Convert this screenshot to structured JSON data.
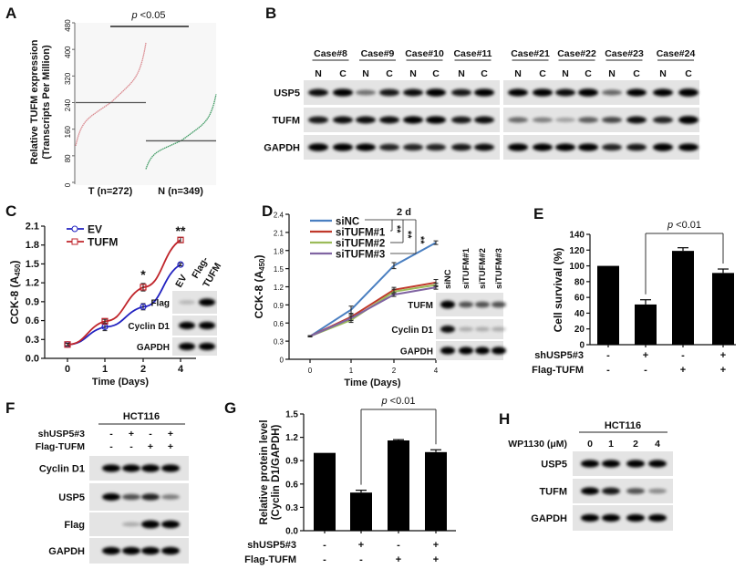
{
  "panel_labels": {
    "A": "A",
    "B": "B",
    "C": "C",
    "D": "D",
    "E": "E",
    "F": "F",
    "G": "G",
    "H": "H"
  },
  "chart_data": [
    {
      "id": "A",
      "type": "scatter",
      "ylabel_line1": "Relative TUFM expression",
      "ylabel_line2": "(Transcripts Per Million)",
      "ylim": [
        0,
        480
      ],
      "yticks": [
        "0",
        "80",
        "160",
        "240",
        "320",
        "400",
        "480"
      ],
      "groups": [
        {
          "label": "T (n=272)",
          "min": 110,
          "max": 420,
          "median": 240,
          "color": "#d9868c"
        },
        {
          "label": "N (n=349)",
          "min": 40,
          "max": 265,
          "median": 125,
          "color": "#3f9a63"
        }
      ],
      "p_label": "p",
      "p_value": "<0.05",
      "grid": false
    },
    {
      "id": "C",
      "type": "line",
      "categories": [
        "0",
        "1",
        "2",
        "4"
      ],
      "xlabel": "Time (Days)",
      "ylabel": "CCK-8 (A",
      "ylabel_sub": "450",
      "ylabel_end": ")",
      "ylim": [
        0,
        2.1
      ],
      "yticks": [
        "0.0",
        "0.3",
        "0.6",
        "0.9",
        "1.2",
        "1.5",
        "1.8",
        "2.1"
      ],
      "legend": "top-left",
      "series": [
        {
          "name": "EV",
          "values": [
            0.22,
            0.5,
            0.82,
            1.49
          ],
          "errors": [
            0.02,
            0.06,
            0.05,
            0.02
          ],
          "color": "#2222c0",
          "marker": "circle"
        },
        {
          "name": "TUFM",
          "values": [
            0.22,
            0.59,
            1.13,
            1.88
          ],
          "errors": [
            0.02,
            0.03,
            0.06,
            0.04
          ],
          "color": "#c0262c",
          "marker": "square"
        }
      ],
      "annotations": [
        {
          "text": "*",
          "category": "2"
        },
        {
          "text": "**",
          "category": "4"
        }
      ]
    },
    {
      "id": "D",
      "type": "line",
      "categories": [
        "0",
        "1",
        "2",
        "4"
      ],
      "xlabel": "Time (Days)",
      "ylabel": "CCK-8 (A",
      "ylabel_sub": "450",
      "ylabel_end": ")",
      "ylim": [
        0,
        2.4
      ],
      "yticks": [
        "0",
        "0.3",
        "0.6",
        "0.9",
        "1.2",
        "1.5",
        "1.8",
        "2.1",
        "2.4"
      ],
      "legend": "top-left",
      "series": [
        {
          "name": "siNC",
          "values": [
            0.38,
            0.82,
            1.55,
            1.93
          ],
          "errors": [
            0.01,
            0.06,
            0.05,
            0.03
          ],
          "color": "#4a7fc1"
        },
        {
          "name": "siTUFM#1",
          "values": [
            0.38,
            0.7,
            1.15,
            1.27
          ],
          "errors": [
            0.01,
            0.05,
            0.04,
            0.05
          ],
          "color": "#c0392b"
        },
        {
          "name": "siTUFM#2",
          "values": [
            0.38,
            0.65,
            1.12,
            1.23
          ],
          "errors": [
            0.01,
            0.04,
            0.04,
            0.03
          ],
          "color": "#9bbb59"
        },
        {
          "name": "siTUFM#3",
          "values": [
            0.38,
            0.68,
            1.07,
            1.19
          ],
          "errors": [
            0.01,
            0.04,
            0.03,
            0.03
          ],
          "color": "#8064a2"
        }
      ],
      "annotations": [
        {
          "text": "2 d"
        },
        {
          "text": "**"
        },
        {
          "text": "**"
        },
        {
          "text": "**"
        }
      ]
    },
    {
      "id": "E",
      "type": "bar",
      "ylabel": "Cell survival (%)",
      "ylim": [
        0,
        140
      ],
      "yticks": [
        "0",
        "20",
        "40",
        "60",
        "80",
        "100",
        "120",
        "140"
      ],
      "values": [
        100,
        51,
        119,
        91
      ],
      "errors": [
        0,
        6,
        4,
        5
      ],
      "conditions": [
        {
          "label": "shUSP5#3",
          "marks": [
            "-",
            "+",
            "-",
            "+"
          ]
        },
        {
          "label": "Flag-TUFM",
          "marks": [
            "-",
            "-",
            "+",
            "+"
          ]
        }
      ],
      "p_label": "p",
      "p_value": "<0.01"
    },
    {
      "id": "G",
      "type": "bar",
      "ylabel_line1": "Relative protein level",
      "ylabel_line2": "(Cyclin D1/GAPDH)",
      "ylim": [
        0,
        1.5
      ],
      "yticks": [
        "0.0",
        "0.3",
        "0.6",
        "0.9",
        "1.2",
        "1.5"
      ],
      "values": [
        1.0,
        0.49,
        1.16,
        1.01
      ],
      "errors": [
        0,
        0.03,
        0.01,
        0.03
      ],
      "conditions": [
        {
          "label": "shUSP5#3",
          "marks": [
            "-",
            "+",
            "-",
            "+"
          ]
        },
        {
          "label": "Flag-TUFM",
          "marks": [
            "-",
            "-",
            "+",
            "+"
          ]
        }
      ],
      "p_label": "p",
      "p_value": "<0.01"
    }
  ],
  "blots": {
    "B": {
      "cases": [
        "Case#8",
        "Case#9",
        "Case#10",
        "Case#11",
        "Case#21",
        "Case#22",
        "Case#23",
        "Case#24"
      ],
      "lanes": [
        "N",
        "C",
        "N",
        "C",
        "N",
        "C",
        "N",
        "C",
        "N",
        "C",
        "N",
        "C",
        "N",
        "C",
        "N",
        "C"
      ],
      "rows": [
        {
          "label": "USP5",
          "intensity": [
            0.8,
            0.9,
            0.35,
            0.75,
            0.8,
            0.95,
            0.75,
            0.9,
            0.85,
            0.9,
            0.8,
            0.95,
            0.4,
            0.85,
            0.85,
            1
          ]
        },
        {
          "label": "TUFM",
          "intensity": [
            0.75,
            0.8,
            0.8,
            0.8,
            0.85,
            0.9,
            0.75,
            0.8,
            0.4,
            0.3,
            0.15,
            0.45,
            0.55,
            0.8,
            0.7,
            1
          ]
        },
        {
          "label": "GAPDH",
          "intensity": [
            0.95,
            0.9,
            0.85,
            0.7,
            0.7,
            0.7,
            0.75,
            0.8,
            0.9,
            0.85,
            0.85,
            0.9,
            0.7,
            0.75,
            0.95,
            0.9
          ]
        }
      ]
    },
    "C_inset": {
      "lanes": [
        "EV",
        "Flag-",
        "TUFM"
      ],
      "rows": [
        {
          "label": "Flag",
          "intensity": [
            0.05,
            0.9
          ]
        },
        {
          "label": "Cyclin D1",
          "intensity": [
            0.85,
            0.9
          ]
        },
        {
          "label": "GAPDH",
          "intensity": [
            0.9,
            0.9
          ]
        }
      ]
    },
    "D_inset": {
      "lanes": [
        "siNC",
        "siTUFM#1",
        "siTUFM#2",
        "siTUFM#3"
      ],
      "rows": [
        {
          "label": "TUFM",
          "intensity": [
            1,
            0.5,
            0.5,
            0.5
          ]
        },
        {
          "label": "Cyclin D1",
          "intensity": [
            0.8,
            0.1,
            0.1,
            0.1
          ]
        },
        {
          "label": "GAPDH",
          "intensity": [
            0.9,
            0.9,
            0.85,
            0.9
          ]
        }
      ]
    },
    "F": {
      "cell_line": "HCT116",
      "conditions": [
        {
          "label": "shUSP5#3",
          "marks": [
            "-",
            "+",
            "-",
            "+"
          ]
        },
        {
          "label": "Flag-TUFM",
          "marks": [
            "-",
            "-",
            "+",
            "+"
          ]
        }
      ],
      "rows": [
        {
          "label": "Cyclin D1",
          "intensity": [
            0.9,
            0.85,
            0.95,
            0.9
          ]
        },
        {
          "label": "USP5",
          "intensity": [
            0.85,
            0.5,
            0.7,
            0.3
          ]
        },
        {
          "label": "Flag",
          "intensity": [
            0,
            0.1,
            1,
            0.95
          ]
        },
        {
          "label": "GAPDH",
          "intensity": [
            0.95,
            0.95,
            0.95,
            0.95
          ]
        }
      ]
    },
    "H": {
      "cell_line": "HCT116",
      "dose_label": "WP1130 (μM)",
      "doses": [
        "0",
        "1",
        "2",
        "4"
      ],
      "rows": [
        {
          "label": "USP5",
          "intensity": [
            0.9,
            0.9,
            0.9,
            0.85
          ]
        },
        {
          "label": "TUFM",
          "intensity": [
            0.85,
            0.75,
            0.5,
            0.25
          ]
        },
        {
          "label": "GAPDH",
          "intensity": [
            0.9,
            0.9,
            0.9,
            0.9
          ]
        }
      ]
    }
  }
}
